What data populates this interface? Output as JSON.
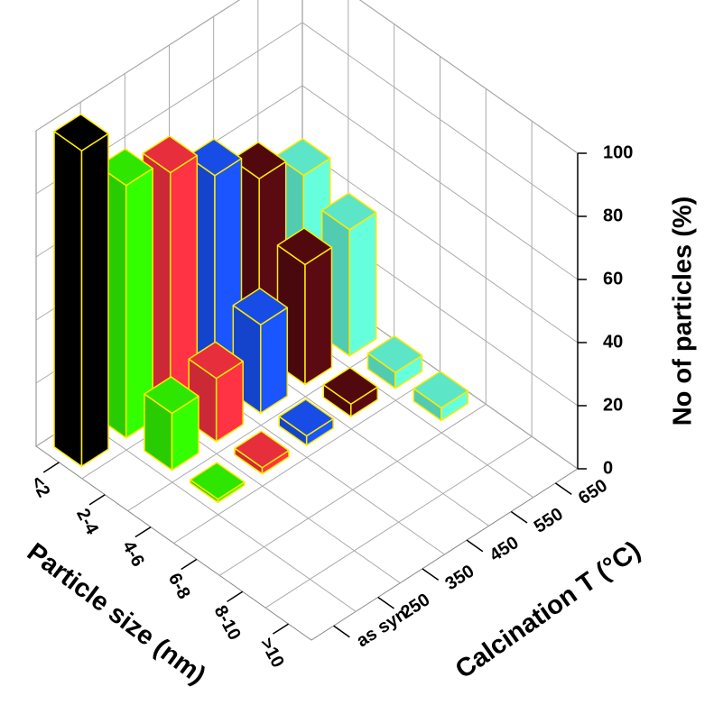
{
  "chart_data": {
    "type": "bar3d",
    "x_label": "Particle size (nm)",
    "y_label": "Calcination T (°C)",
    "z_label": "No of particles (%)",
    "categories": [
      "<2",
      "2-4",
      "4-6",
      "6-8",
      "8-10",
      ">10"
    ],
    "series": [
      {
        "name": "as syn",
        "color": "#000000",
        "values": [
          100,
          null,
          null,
          null,
          null,
          null
        ]
      },
      {
        "name": "250",
        "color": "#33ff00",
        "values": [
          80,
          18,
          1,
          null,
          null,
          null
        ]
      },
      {
        "name": "350",
        "color": "#ff3344",
        "values": [
          75,
          20,
          2,
          null,
          null,
          null
        ]
      },
      {
        "name": "450",
        "color": "#1a55ff",
        "values": [
          65,
          28,
          3,
          null,
          null,
          null
        ]
      },
      {
        "name": "550",
        "color": "#5a0a10",
        "values": [
          55,
          38,
          4,
          null,
          null,
          null
        ]
      },
      {
        "name": "650",
        "color": "#66ffdd",
        "values": [
          47,
          40,
          5,
          4,
          null,
          null
        ]
      }
    ],
    "zlim": [
      0,
      100
    ],
    "zticks": [
      0,
      20,
      40,
      60,
      80,
      100
    ],
    "grid": true
  }
}
